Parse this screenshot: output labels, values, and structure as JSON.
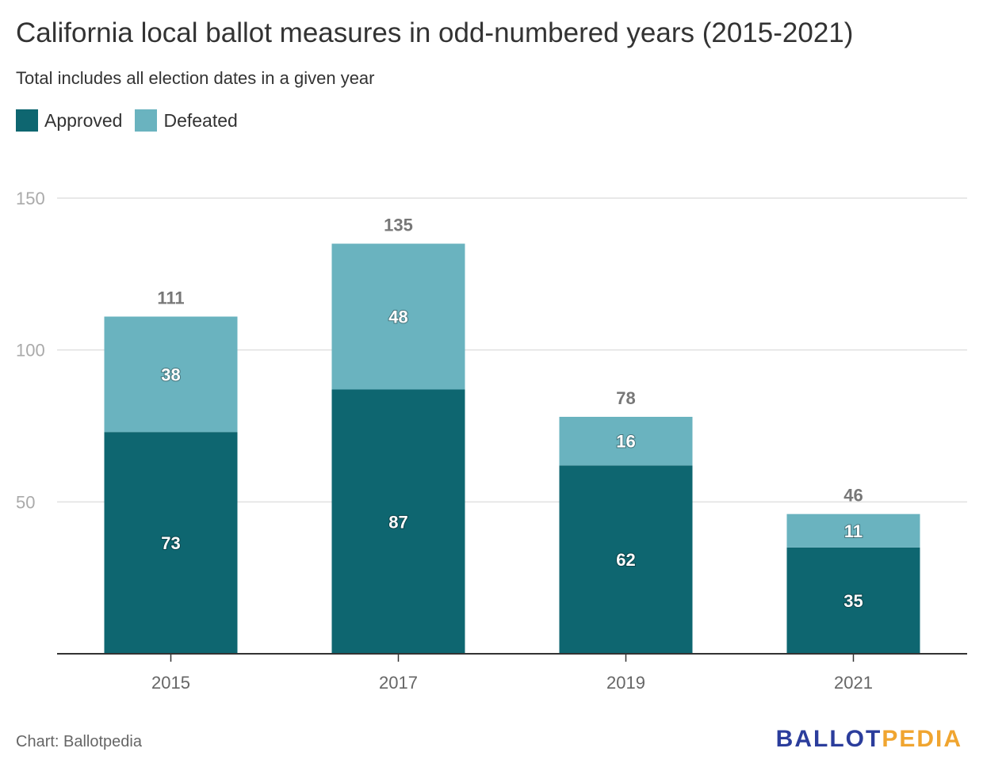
{
  "title": "California local ballot measures in odd-numbered years (2015-2021)",
  "subtitle": "Total includes all election dates in a given year",
  "source": "Chart: Ballotpedia",
  "logo": {
    "part1": "BALLOT",
    "part2": "PEDIA",
    "color1": "#2b3d9c",
    "color2": "#f0a530"
  },
  "colors": {
    "approved": "#0e6670",
    "defeated": "#6ab3bf",
    "grid": "#e0e0e0",
    "axis": "#333333"
  },
  "chart_data": {
    "type": "bar",
    "stacked": true,
    "categories": [
      "2015",
      "2017",
      "2019",
      "2021"
    ],
    "series": [
      {
        "name": "Approved",
        "values": [
          73,
          87,
          62,
          35
        ]
      },
      {
        "name": "Defeated",
        "values": [
          38,
          48,
          16,
          11
        ]
      }
    ],
    "totals": [
      111,
      135,
      78,
      46
    ],
    "yticks": [
      50,
      100,
      150
    ],
    "ylim": [
      0,
      150
    ],
    "grid": true,
    "legend_position": "top-left"
  }
}
